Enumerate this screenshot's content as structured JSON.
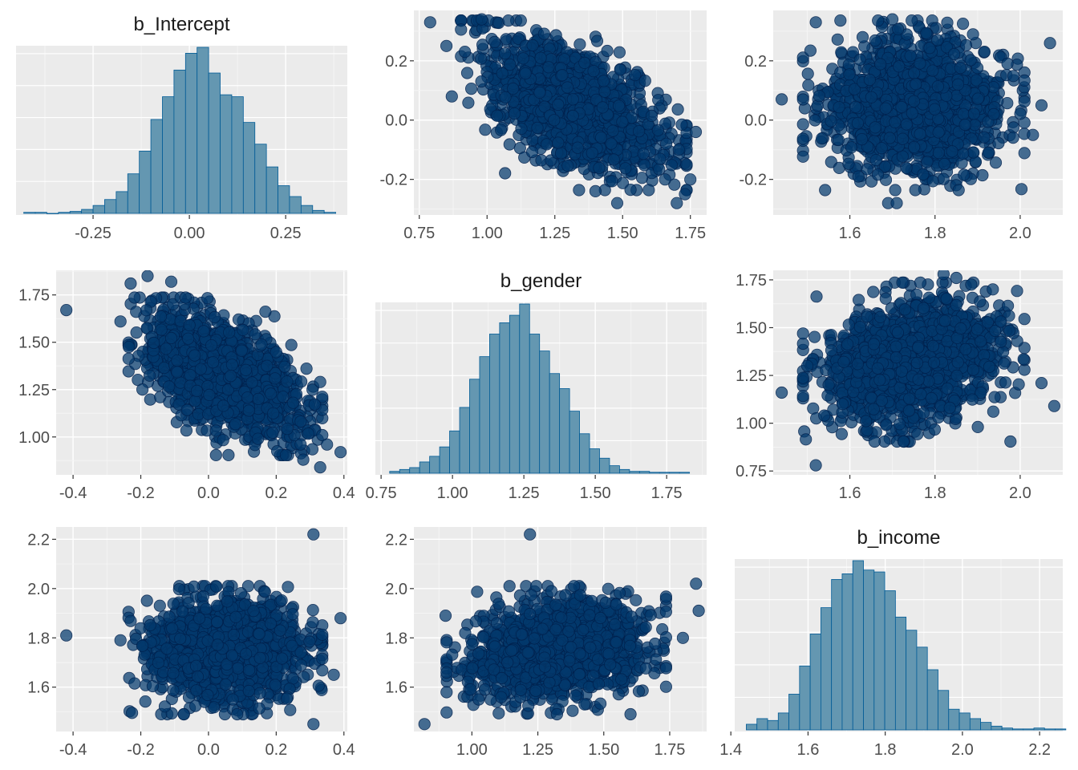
{
  "chart_data": [
    {
      "type": "histogram",
      "title": "b_Intercept",
      "variable": "b_Intercept",
      "xticks": [
        -0.25,
        0.0,
        0.25
      ],
      "xtick_labels": [
        "-0.25",
        "0.00",
        "0.25"
      ],
      "xlim": [
        -0.45,
        0.41
      ],
      "bins": {
        "start": -0.43,
        "width": 0.03,
        "counts": [
          1,
          1,
          0,
          1,
          2,
          4,
          8,
          14,
          22,
          40,
          63,
          95,
          118,
          145,
          162,
          168,
          142,
          120,
          118,
          92,
          70,
          47,
          28,
          17,
          8,
          3,
          1
        ]
      }
    },
    {
      "type": "scatter",
      "title": "",
      "x_variable": "b_gender",
      "y_variable": "b_Intercept",
      "xticks": [
        0.75,
        1.0,
        1.25,
        1.5,
        1.75
      ],
      "xtick_labels": [
        "0.75",
        "1.00",
        "1.25",
        "1.50",
        "1.75"
      ],
      "yticks": [
        -0.2,
        0.0,
        0.2
      ],
      "ytick_labels": [
        "-0.2",
        "0.0",
        "0.2"
      ],
      "xlim": [
        0.73,
        1.81
      ],
      "ylim": [
        -0.32,
        0.37
      ],
      "x_mean": 1.32,
      "y_mean": 0.05,
      "x_sd": 0.16,
      "y_sd": 0.11,
      "correlation": -0.55,
      "n_bulk": 1500,
      "outliers": [
        [
          0.79,
          0.33
        ],
        [
          0.85,
          0.25
        ],
        [
          0.98,
          0.34
        ],
        [
          1.77,
          -0.04
        ],
        [
          1.7,
          -0.28
        ],
        [
          1.73,
          -0.25
        ],
        [
          1.4,
          -0.24
        ],
        [
          1.48,
          -0.28
        ],
        [
          0.87,
          0.08
        ],
        [
          1.75,
          -0.2
        ]
      ]
    },
    {
      "type": "scatter",
      "title": "",
      "x_variable": "b_income",
      "y_variable": "b_Intercept",
      "xticks": [
        1.6,
        1.8,
        2.0
      ],
      "xtick_labels": [
        "1.6",
        "1.8",
        "2.0"
      ],
      "yticks": [
        -0.2,
        0.0,
        0.2
      ],
      "ytick_labels": [
        "-0.2",
        "0.0",
        "0.2"
      ],
      "xlim": [
        1.42,
        2.1
      ],
      "ylim": [
        -0.32,
        0.37
      ],
      "x_mean": 1.75,
      "y_mean": 0.05,
      "x_sd": 0.1,
      "y_sd": 0.11,
      "correlation": 0.0,
      "n_bulk": 1500,
      "outliers": [
        [
          1.44,
          0.07
        ],
        [
          1.52,
          0.33
        ],
        [
          1.63,
          0.28
        ],
        [
          1.7,
          0.34
        ],
        [
          2.07,
          0.26
        ],
        [
          2.03,
          -0.05
        ],
        [
          1.69,
          -0.28
        ],
        [
          1.71,
          -0.28
        ],
        [
          2.05,
          0.05
        ],
        [
          1.62,
          -0.19
        ]
      ]
    },
    {
      "type": "scatter",
      "title": "",
      "x_variable": "b_Intercept",
      "y_variable": "b_gender",
      "xticks": [
        -0.4,
        -0.2,
        0.0,
        0.2,
        0.4
      ],
      "xtick_labels": [
        "-0.4",
        "-0.2",
        "0.0",
        "0.2",
        "0.4"
      ],
      "yticks": [
        1.0,
        1.25,
        1.5,
        1.75
      ],
      "ytick_labels": [
        "1.00",
        "1.25",
        "1.50",
        "1.75"
      ],
      "xlim": [
        -0.45,
        0.41
      ],
      "ylim": [
        0.8,
        1.88
      ],
      "x_mean": 0.05,
      "y_mean": 1.32,
      "x_sd": 0.11,
      "y_sd": 0.16,
      "correlation": -0.55,
      "n_bulk": 1500,
      "outliers": [
        [
          -0.42,
          1.67
        ],
        [
          -0.18,
          1.85
        ],
        [
          -0.23,
          1.81
        ],
        [
          0.39,
          0.92
        ],
        [
          0.33,
          0.84
        ],
        [
          0.35,
          0.96
        ],
        [
          -0.26,
          1.61
        ],
        [
          0.28,
          0.88
        ],
        [
          -0.11,
          1.82
        ]
      ]
    },
    {
      "type": "histogram",
      "title": "b_gender",
      "variable": "b_gender",
      "xticks": [
        0.75,
        1.0,
        1.25,
        1.5,
        1.75
      ],
      "xtick_labels": [
        "0.75",
        "1.00",
        "1.25",
        "1.50",
        "1.75"
      ],
      "xlim": [
        0.73,
        1.89
      ],
      "bins": {
        "start": 0.78,
        "width": 0.035,
        "counts": [
          2,
          4,
          6,
          12,
          18,
          28,
          45,
          70,
          100,
          124,
          148,
          160,
          168,
          180,
          148,
          130,
          106,
          90,
          66,
          42,
          26,
          16,
          8,
          4,
          2,
          2,
          1,
          1,
          1,
          1
        ]
      }
    },
    {
      "type": "scatter",
      "title": "",
      "x_variable": "b_income",
      "y_variable": "b_gender",
      "xticks": [
        1.6,
        1.8,
        2.0
      ],
      "xtick_labels": [
        "1.6",
        "1.8",
        "2.0"
      ],
      "yticks": [
        0.75,
        1.0,
        1.25,
        1.5,
        1.75
      ],
      "ytick_labels": [
        "0.75",
        "1.00",
        "1.25",
        "1.50",
        "1.75"
      ],
      "xlim": [
        1.42,
        2.1
      ],
      "ylim": [
        0.73,
        1.8
      ],
      "x_mean": 1.75,
      "y_mean": 1.32,
      "x_sd": 0.1,
      "y_sd": 0.16,
      "correlation": 0.25,
      "n_bulk": 1500,
      "outliers": [
        [
          1.44,
          1.16
        ],
        [
          1.52,
          0.78
        ],
        [
          1.82,
          1.78
        ],
        [
          2.08,
          1.09
        ],
        [
          2.05,
          1.21
        ],
        [
          1.5,
          1.3
        ],
        [
          1.54,
          1.04
        ],
        [
          1.85,
          1.76
        ]
      ]
    },
    {
      "type": "scatter",
      "title": "",
      "x_variable": "b_Intercept",
      "y_variable": "b_income",
      "xticks": [
        -0.4,
        -0.2,
        0.0,
        0.2,
        0.4
      ],
      "xtick_labels": [
        "-0.4",
        "-0.2",
        "0.0",
        "0.2",
        "0.4"
      ],
      "yticks": [
        1.6,
        1.8,
        2.0,
        2.2
      ],
      "ytick_labels": [
        "1.6",
        "1.8",
        "2.0",
        "2.2"
      ],
      "xlim": [
        -0.45,
        0.41
      ],
      "ylim": [
        1.42,
        2.25
      ],
      "x_mean": 0.05,
      "y_mean": 1.75,
      "x_sd": 0.11,
      "y_sd": 0.1,
      "correlation": 0.0,
      "n_bulk": 1500,
      "outliers": [
        [
          -0.42,
          1.81
        ],
        [
          0.31,
          2.22
        ],
        [
          0.31,
          1.45
        ],
        [
          0.39,
          1.88
        ],
        [
          -0.26,
          1.79
        ],
        [
          0.37,
          1.65
        ]
      ]
    },
    {
      "type": "scatter",
      "title": "",
      "x_variable": "b_gender",
      "y_variable": "b_income",
      "xticks": [
        1.0,
        1.25,
        1.5,
        1.75
      ],
      "xtick_labels": [
        "1.00",
        "1.25",
        "1.50",
        "1.75"
      ],
      "yticks": [
        1.6,
        1.8,
        2.0,
        2.2
      ],
      "ytick_labels": [
        "1.6",
        "1.8",
        "2.0",
        "2.2"
      ],
      "xlim": [
        0.78,
        1.89
      ],
      "ylim": [
        1.42,
        2.25
      ],
      "x_mean": 1.32,
      "y_mean": 1.75,
      "x_sd": 0.16,
      "y_sd": 0.1,
      "correlation": 0.25,
      "n_bulk": 1500,
      "outliers": [
        [
          0.82,
          1.45
        ],
        [
          1.22,
          2.22
        ],
        [
          1.86,
          1.91
        ],
        [
          1.85,
          2.02
        ],
        [
          0.9,
          1.89
        ],
        [
          1.8,
          1.8
        ]
      ]
    },
    {
      "type": "histogram",
      "title": "b_income",
      "variable": "b_income",
      "xticks": [
        1.4,
        1.6,
        1.8,
        2.0,
        2.2
      ],
      "xtick_labels": [
        "1.4",
        "1.6",
        "1.8",
        "2.0",
        "2.2"
      ],
      "xlim": [
        1.41,
        2.26
      ],
      "bins": {
        "start": 1.44,
        "width": 0.0276,
        "counts": [
          6,
          12,
          10,
          18,
          38,
          68,
          102,
          130,
          160,
          166,
          180,
          170,
          168,
          148,
          120,
          106,
          88,
          64,
          42,
          22,
          18,
          12,
          8,
          4,
          2,
          1,
          1,
          2,
          1,
          1
        ]
      }
    }
  ],
  "style": {
    "panel_background": "#ebebeb",
    "grid_major": "#ffffff",
    "grid_minor": "#f4f4f4",
    "point_fill": "#03396c",
    "point_stroke": "#011f4b",
    "bar_fill": "#6497b1",
    "bar_stroke": "#005b96",
    "text_color": "#4d4d4d",
    "title_color": "#1a1a1a"
  }
}
